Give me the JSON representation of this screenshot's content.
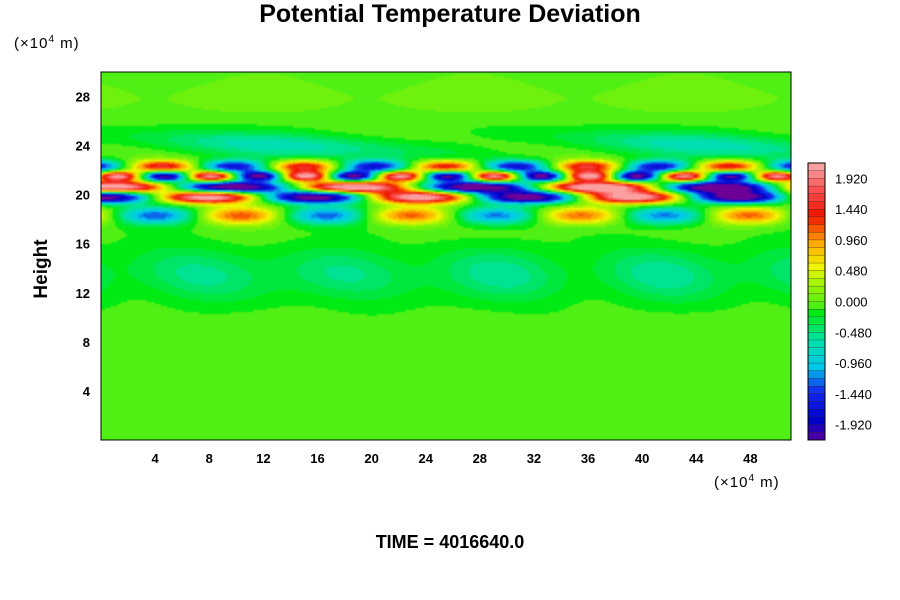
{
  "chart_data": {
    "type": "heatmap",
    "title": "Potential Temperature Deviation",
    "ylabel": "Height",
    "x_unit": {
      "prefix": "(×10",
      "exp": "4",
      "suffix": " m)"
    },
    "y_unit": {
      "prefix": "(×10",
      "exp": "4",
      "suffix": " m)"
    },
    "xlim": [
      0,
      51
    ],
    "ylim": [
      0,
      30
    ],
    "x_ticks": [
      4,
      8,
      12,
      16,
      20,
      24,
      28,
      32,
      36,
      40,
      44,
      48
    ],
    "y_ticks": [
      4,
      8,
      12,
      16,
      20,
      24,
      28
    ],
    "colorbar": {
      "min": -2.16,
      "max": 2.16,
      "step": 0.12,
      "tick_values": [
        1.92,
        1.44,
        0.96,
        0.48,
        0.0,
        -0.48,
        -0.96,
        -1.44,
        -1.92
      ],
      "tick_labels": [
        "1.920",
        "1.440",
        "0.960",
        "0.480",
        "0.000",
        "-0.480",
        "-0.960",
        "-1.440",
        "-1.920"
      ]
    },
    "time_label": "TIME = 4016640.0"
  }
}
